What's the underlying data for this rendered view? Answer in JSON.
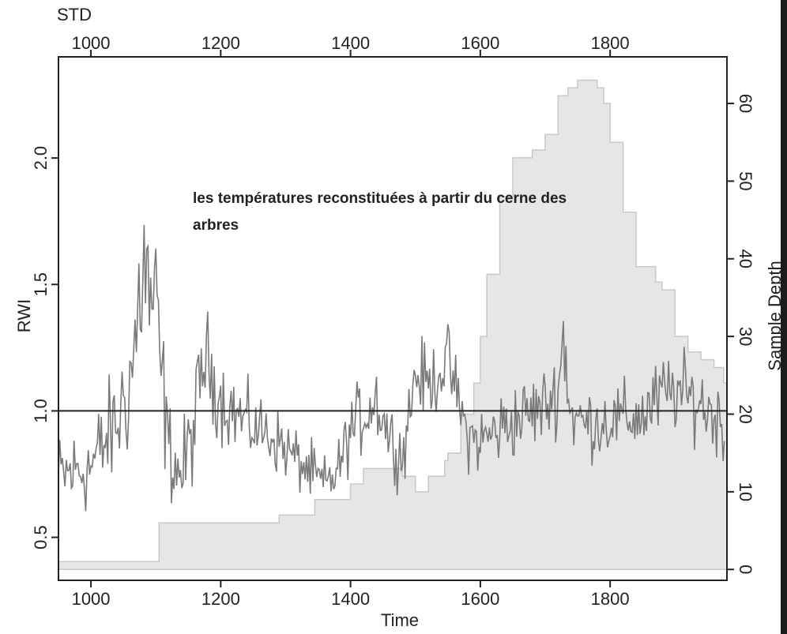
{
  "chart_data": {
    "type": "line",
    "top_label": "STD",
    "xlabel": "Time",
    "ylabel": "RWI",
    "y2label": "Sample Depth",
    "xlim": [
      950,
      1980
    ],
    "ylim": [
      0.33,
      2.4
    ],
    "y2lim": [
      -1.4,
      66
    ],
    "x_ticks": [
      1000,
      1200,
      1400,
      1600,
      1800
    ],
    "x_tick_labels": [
      "1000",
      "1200",
      "1400",
      "1600",
      "1800"
    ],
    "top_ticks": [
      1000,
      1200,
      1400,
      1600,
      1800
    ],
    "top_tick_labels": [
      "1000",
      "1200",
      "1400",
      "1600",
      "1800"
    ],
    "y_ticks": [
      0.5,
      1.0,
      1.5,
      2.0
    ],
    "y_tick_labels": [
      "0.5",
      "1.0",
      "1.5",
      "2.0"
    ],
    "y2_ticks": [
      0,
      10,
      20,
      30,
      40,
      50,
      60
    ],
    "y2_tick_labels": [
      "0",
      "10",
      "20",
      "30",
      "40",
      "50",
      "60"
    ],
    "reference_line": 1.0,
    "annotation": [
      "les températures reconstituées à partir du cerne des",
      "arbres"
    ],
    "colors": {
      "rwi": "#7a7a7a",
      "depth_fill": "#e6e6e6",
      "depth_stroke": "#c8c8c8",
      "annotation": "#e8313c",
      "axis": "#222222"
    },
    "rwi_series": {
      "name": "RWI",
      "x": [
        950,
        1000,
        1040,
        1060,
        1070,
        1080,
        1090,
        1100,
        1110,
        1120,
        1140,
        1160,
        1175,
        1200,
        1240,
        1280,
        1320,
        1360,
        1380,
        1400,
        1440,
        1460,
        1480,
        1500,
        1520,
        1550,
        1580,
        1600,
        1650,
        1700,
        1720,
        1728,
        1740,
        1760,
        1800,
        1850,
        1880,
        1900,
        1940,
        1975
      ],
      "y": [
        0.74,
        0.78,
        0.95,
        1.12,
        1.3,
        1.6,
        1.45,
        1.4,
        1.1,
        0.85,
        0.74,
        0.95,
        1.22,
        1.05,
        0.95,
        0.9,
        0.8,
        0.7,
        0.76,
        0.92,
        1.05,
        0.9,
        0.82,
        1.15,
        1.1,
        1.2,
        0.9,
        0.88,
        0.96,
        1.02,
        1.08,
        1.3,
        0.98,
        0.95,
        0.96,
        0.98,
        1.06,
        1.08,
        1.03,
        0.95
      ],
      "amplitude": [
        0.18,
        0.2,
        0.25,
        0.3,
        0.35,
        0.45,
        0.4,
        0.35,
        0.3,
        0.2,
        0.2,
        0.22,
        0.22,
        0.18,
        0.16,
        0.14,
        0.13,
        0.13,
        0.12,
        0.15,
        0.17,
        0.14,
        0.14,
        0.17,
        0.15,
        0.15,
        0.14,
        0.15,
        0.16,
        0.16,
        0.16,
        0.25,
        0.16,
        0.15,
        0.15,
        0.16,
        0.17,
        0.17,
        0.16,
        0.16
      ]
    },
    "depth_series": {
      "name": "Sample Depth",
      "x": [
        950,
        1100,
        1105,
        1280,
        1290,
        1320,
        1345,
        1380,
        1400,
        1420,
        1455,
        1480,
        1500,
        1510,
        1520,
        1545,
        1550,
        1570,
        1590,
        1600,
        1610,
        1630,
        1650,
        1680,
        1700,
        1720,
        1735,
        1750,
        1760,
        1770,
        1780,
        1790,
        1800,
        1820,
        1840,
        1870,
        1880,
        1900,
        1920,
        1940,
        1960,
        1975
      ],
      "y": [
        1,
        1,
        6,
        6,
        7,
        7,
        9,
        9,
        11,
        13,
        13,
        12,
        10,
        10,
        12,
        14,
        15,
        20,
        24,
        30,
        38,
        48,
        53,
        54,
        56,
        61,
        62,
        63,
        63,
        63,
        62,
        60,
        55,
        46,
        39,
        37,
        36,
        30,
        28,
        27,
        26,
        24
      ]
    }
  }
}
